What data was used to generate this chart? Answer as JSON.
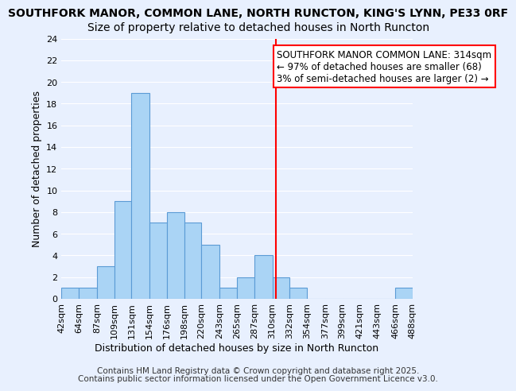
{
  "title_line1": "SOUTHFORK MANOR, COMMON LANE, NORTH RUNCTON, KING'S LYNN, PE33 0RF",
  "title_line2": "Size of property relative to detached houses in North Runcton",
  "xlabel": "Distribution of detached houses by size in North Runcton",
  "ylabel": "Number of detached properties",
  "bin_edges": [
    42,
    64,
    87,
    109,
    131,
    154,
    176,
    198,
    220,
    243,
    265,
    287,
    310,
    332,
    354,
    377,
    399,
    421,
    443,
    466,
    488
  ],
  "counts": [
    1,
    1,
    3,
    9,
    19,
    7,
    8,
    7,
    5,
    1,
    2,
    4,
    2,
    1,
    0,
    0,
    0,
    0,
    0,
    1
  ],
  "bar_color": "#aad4f5",
  "bar_edge_color": "#5b9bd5",
  "vline_x": 314,
  "vline_color": "red",
  "annotation_text": "SOUTHFORK MANOR COMMON LANE: 314sqm\n← 97% of detached houses are smaller (68)\n3% of semi-detached houses are larger (2) →",
  "annotation_box_color": "white",
  "annotation_box_edge_color": "red",
  "ylim": [
    0,
    24
  ],
  "yticks": [
    0,
    2,
    4,
    6,
    8,
    10,
    12,
    14,
    16,
    18,
    20,
    22,
    24
  ],
  "tick_labels": [
    "42sqm",
    "64sqm",
    "87sqm",
    "109sqm",
    "131sqm",
    "154sqm",
    "176sqm",
    "198sqm",
    "220sqm",
    "243sqm",
    "265sqm",
    "287sqm",
    "310sqm",
    "332sqm",
    "354sqm",
    "377sqm",
    "399sqm",
    "421sqm",
    "443sqm",
    "466sqm",
    "488sqm"
  ],
  "bg_color": "#e8f0fe",
  "footnote1": "Contains HM Land Registry data © Crown copyright and database right 2025.",
  "footnote2": "Contains public sector information licensed under the Open Government Licence v3.0.",
  "title_fontsize": 10,
  "subtitle_fontsize": 10,
  "axis_label_fontsize": 9,
  "tick_fontsize": 8,
  "annotation_fontsize": 8.5,
  "footnote_fontsize": 7.5
}
